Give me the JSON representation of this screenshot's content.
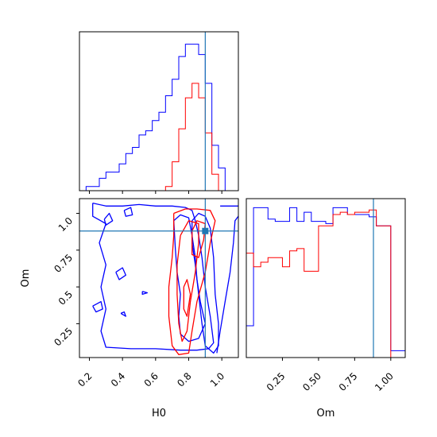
{
  "chart_data": {
    "type": "corner",
    "params": [
      "H0",
      "Om"
    ],
    "truth": {
      "H0": 0.9,
      "Om": 0.88
    },
    "truth_color": "#1f77b4",
    "series": [
      {
        "color": "#0000ff"
      },
      {
        "color": "#ff0000"
      }
    ],
    "histograms": {
      "H0": {
        "xlim": [
          0.14,
          1.1
        ],
        "bins_edges": [
          0.14,
          0.18,
          0.22,
          0.26,
          0.3,
          0.34,
          0.38,
          0.42,
          0.46,
          0.5,
          0.54,
          0.58,
          0.62,
          0.66,
          0.7,
          0.74,
          0.78,
          0.82,
          0.86,
          0.9,
          0.94,
          0.98,
          1.02,
          1.06,
          1.1
        ],
        "blue": [
          0,
          2,
          2,
          6,
          9,
          9,
          13,
          18,
          21,
          27,
          29,
          34,
          38,
          46,
          54,
          65,
          71,
          71,
          66,
          52,
          22,
          11,
          0,
          0
        ],
        "red": [
          0,
          0,
          0,
          0,
          0,
          0,
          0,
          0,
          0,
          0,
          0,
          0,
          0,
          2,
          14,
          30,
          45,
          52,
          45,
          28,
          8,
          0,
          0,
          0
        ],
        "ymax": 77
      },
      "Om": {
        "xlim": [
          0.0,
          1.1
        ],
        "bins_edges": [
          0.0,
          0.05,
          0.1,
          0.15,
          0.2,
          0.25,
          0.3,
          0.35,
          0.4,
          0.45,
          0.5,
          0.55,
          0.6,
          0.65,
          0.7,
          0.75,
          0.8,
          0.85,
          0.9,
          0.95,
          1.0,
          1.05,
          1.1
        ],
        "blue": [
          14,
          66,
          66,
          61,
          60,
          60,
          66,
          60,
          64,
          60,
          60,
          59,
          66,
          66,
          63,
          63,
          63,
          62,
          58,
          58,
          3,
          3
        ],
        "red": [
          46,
          40,
          42,
          44,
          44,
          40,
          47,
          48,
          38,
          38,
          58,
          58,
          63,
          64,
          63,
          64,
          64,
          65,
          58,
          58,
          0,
          0
        ],
        "ymax": 70
      }
    },
    "scatter2d": {
      "xlim": [
        0.14,
        1.1
      ],
      "ylim": [
        0.02,
        1.1
      ],
      "xticks": [
        0.2,
        0.4,
        0.6,
        0.8,
        1.0
      ],
      "yticks": [
        0.25,
        0.5,
        0.75,
        1.0
      ],
      "blue_contours": [
        [
          [
            0.22,
            1.07
          ],
          [
            0.3,
            1.05
          ],
          [
            0.4,
            1.05
          ],
          [
            0.5,
            1.06
          ],
          [
            0.6,
            1.05
          ],
          [
            0.7,
            1.05
          ],
          [
            0.78,
            1.04
          ],
          [
            0.82,
            1.02
          ],
          [
            0.84,
            0.95
          ],
          [
            0.86,
            0.85
          ],
          [
            0.88,
            0.7
          ],
          [
            0.9,
            0.5
          ],
          [
            0.93,
            0.3
          ],
          [
            0.95,
            0.12
          ],
          [
            0.92,
            0.08
          ],
          [
            0.85,
            0.07
          ],
          [
            0.75,
            0.07
          ],
          [
            0.6,
            0.08
          ],
          [
            0.45,
            0.08
          ],
          [
            0.3,
            0.09
          ],
          [
            0.27,
            0.2
          ],
          [
            0.3,
            0.35
          ],
          [
            0.27,
            0.5
          ],
          [
            0.3,
            0.65
          ],
          [
            0.26,
            0.8
          ],
          [
            0.3,
            0.93
          ],
          [
            0.22,
            0.98
          ],
          [
            0.22,
            1.07
          ]
        ],
        [
          [
            0.71,
            0.95
          ],
          [
            0.75,
            0.99
          ],
          [
            0.8,
            0.97
          ],
          [
            0.82,
            0.85
          ],
          [
            0.84,
            0.7
          ],
          [
            0.85,
            0.55
          ],
          [
            0.87,
            0.4
          ],
          [
            0.9,
            0.25
          ],
          [
            0.86,
            0.15
          ],
          [
            0.8,
            0.13
          ],
          [
            0.75,
            0.18
          ],
          [
            0.74,
            0.3
          ],
          [
            0.75,
            0.45
          ],
          [
            0.73,
            0.6
          ],
          [
            0.72,
            0.75
          ],
          [
            0.71,
            0.95
          ]
        ],
        [
          [
            0.82,
            0.95
          ],
          [
            0.86,
            1.0
          ],
          [
            0.9,
            0.98
          ],
          [
            0.93,
            0.9
          ],
          [
            0.95,
            0.7
          ],
          [
            0.96,
            0.45
          ],
          [
            0.98,
            0.25
          ],
          [
            0.98,
            0.1
          ],
          [
            0.95,
            0.05
          ],
          [
            0.9,
            0.1
          ],
          [
            0.88,
            0.25
          ],
          [
            0.86,
            0.45
          ],
          [
            0.84,
            0.65
          ],
          [
            0.82,
            0.8
          ],
          [
            0.82,
            0.95
          ]
        ],
        [
          [
            0.36,
            0.6
          ],
          [
            0.4,
            0.63
          ],
          [
            0.42,
            0.58
          ],
          [
            0.38,
            0.55
          ],
          [
            0.36,
            0.6
          ]
        ],
        [
          [
            0.22,
            0.37
          ],
          [
            0.27,
            0.4
          ],
          [
            0.28,
            0.35
          ],
          [
            0.24,
            0.33
          ],
          [
            0.22,
            0.37
          ]
        ],
        [
          [
            0.52,
            0.47
          ],
          [
            0.55,
            0.46
          ],
          [
            0.52,
            0.45
          ],
          [
            0.52,
            0.47
          ]
        ],
        [
          [
            0.39,
            0.32
          ],
          [
            0.41,
            0.33
          ],
          [
            0.42,
            0.3
          ],
          [
            0.39,
            0.32
          ]
        ],
        [
          [
            0.29,
            0.96
          ],
          [
            0.32,
            1.0
          ],
          [
            0.34,
            0.95
          ],
          [
            0.3,
            0.92
          ],
          [
            0.29,
            0.96
          ]
        ],
        [
          [
            0.41,
            1.02
          ],
          [
            0.45,
            1.04
          ],
          [
            0.46,
            0.99
          ],
          [
            0.42,
            0.98
          ],
          [
            0.41,
            1.02
          ]
        ],
        [
          [
            0.99,
            1.05
          ],
          [
            1.1,
            1.05
          ]
        ],
        [
          [
            0.97,
            0.05
          ],
          [
            0.99,
            0.2
          ],
          [
            1.02,
            0.4
          ],
          [
            1.05,
            0.6
          ],
          [
            1.07,
            0.8
          ],
          [
            1.08,
            0.95
          ],
          [
            1.1,
            0.98
          ]
        ]
      ],
      "red_contours": [
        [
          [
            0.71,
            1.0
          ],
          [
            0.78,
            1.03
          ],
          [
            0.85,
            1.03
          ],
          [
            0.93,
            1.02
          ],
          [
            0.96,
            0.95
          ],
          [
            0.93,
            0.8
          ],
          [
            0.9,
            0.6
          ],
          [
            0.85,
            0.4
          ],
          [
            0.82,
            0.2
          ],
          [
            0.8,
            0.05
          ],
          [
            0.74,
            0.04
          ],
          [
            0.7,
            0.1
          ],
          [
            0.68,
            0.3
          ],
          [
            0.68,
            0.5
          ],
          [
            0.7,
            0.7
          ],
          [
            0.71,
            0.85
          ],
          [
            0.71,
            1.0
          ]
        ],
        [
          [
            0.75,
            0.85
          ],
          [
            0.8,
            0.95
          ],
          [
            0.86,
            0.93
          ],
          [
            0.86,
            0.8
          ],
          [
            0.84,
            0.6
          ],
          [
            0.81,
            0.4
          ],
          [
            0.79,
            0.2
          ],
          [
            0.76,
            0.13
          ],
          [
            0.74,
            0.25
          ],
          [
            0.73,
            0.45
          ],
          [
            0.73,
            0.65
          ],
          [
            0.75,
            0.85
          ]
        ],
        [
          [
            0.82,
            0.88
          ],
          [
            0.85,
            0.95
          ],
          [
            0.9,
            0.93
          ],
          [
            0.89,
            0.82
          ],
          [
            0.86,
            0.7
          ],
          [
            0.82,
            0.72
          ],
          [
            0.82,
            0.88
          ]
        ],
        [
          [
            0.77,
            0.5
          ],
          [
            0.79,
            0.55
          ],
          [
            0.81,
            0.45
          ],
          [
            0.79,
            0.3
          ],
          [
            0.77,
            0.35
          ],
          [
            0.77,
            0.5
          ]
        ]
      ],
      "points": [
        [
          0.9,
          0.88
        ]
      ]
    },
    "xlabel_1": "H0",
    "xlabel_2": "Om",
    "ylabel": "Om",
    "hist2_xticks": [
      0.25,
      0.5,
      0.75,
      1.0
    ]
  }
}
